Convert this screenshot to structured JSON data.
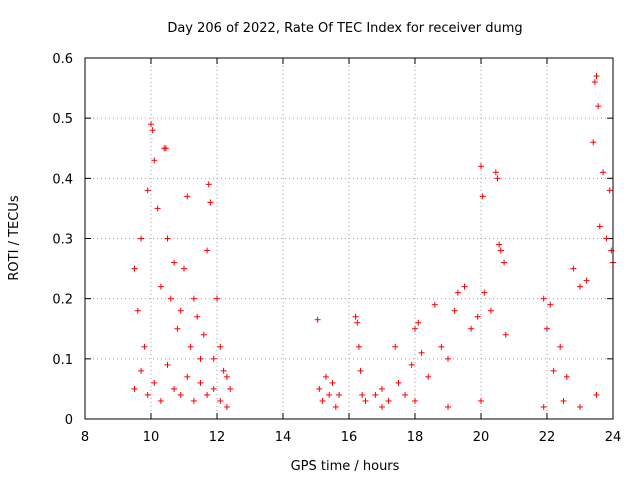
{
  "chart_data": {
    "type": "scatter",
    "title": "Day 206 of 2022, Rate Of TEC Index for receiver dumg",
    "xlabel": "GPS time / hours",
    "ylabel": "ROTI / TECUs",
    "xlim": [
      8,
      24
    ],
    "ylim": [
      0,
      0.6
    ],
    "x_ticks": [
      8,
      10,
      12,
      14,
      16,
      18,
      20,
      22,
      24
    ],
    "x_tick_labels": [
      "8",
      "10",
      "12",
      "14",
      "16",
      "18",
      "20",
      "22",
      "24"
    ],
    "y_ticks": [
      0,
      0.1,
      0.2,
      0.3,
      0.4,
      0.5,
      0.6
    ],
    "y_tick_labels": [
      "0",
      "0.1",
      "0.2",
      "0.3",
      "0.4",
      "0.5",
      "0.6"
    ],
    "grid": true,
    "marker": "+",
    "color": "#ff0000",
    "series": [
      {
        "name": "ROTI",
        "points": [
          [
            9.5,
            0.25
          ],
          [
            9.6,
            0.18
          ],
          [
            9.7,
            0.3
          ],
          [
            9.8,
            0.12
          ],
          [
            9.9,
            0.38
          ],
          [
            10.0,
            0.49
          ],
          [
            10.05,
            0.48
          ],
          [
            10.1,
            0.43
          ],
          [
            10.2,
            0.35
          ],
          [
            10.3,
            0.22
          ],
          [
            10.4,
            0.45
          ],
          [
            10.45,
            0.45
          ],
          [
            10.5,
            0.3
          ],
          [
            10.6,
            0.2
          ],
          [
            10.7,
            0.26
          ],
          [
            10.8,
            0.15
          ],
          [
            10.9,
            0.18
          ],
          [
            11.0,
            0.25
          ],
          [
            11.1,
            0.37
          ],
          [
            11.2,
            0.12
          ],
          [
            11.3,
            0.2
          ],
          [
            11.4,
            0.17
          ],
          [
            11.5,
            0.1
          ],
          [
            11.6,
            0.14
          ],
          [
            11.7,
            0.28
          ],
          [
            11.75,
            0.39
          ],
          [
            11.8,
            0.36
          ],
          [
            11.9,
            0.1
          ],
          [
            12.0,
            0.2
          ],
          [
            12.1,
            0.12
          ],
          [
            12.2,
            0.08
          ],
          [
            12.3,
            0.07
          ],
          [
            12.4,
            0.05
          ],
          [
            9.5,
            0.05
          ],
          [
            9.7,
            0.08
          ],
          [
            9.9,
            0.04
          ],
          [
            10.1,
            0.06
          ],
          [
            10.3,
            0.03
          ],
          [
            10.5,
            0.09
          ],
          [
            10.7,
            0.05
          ],
          [
            10.9,
            0.04
          ],
          [
            11.1,
            0.07
          ],
          [
            11.3,
            0.03
          ],
          [
            11.5,
            0.06
          ],
          [
            11.7,
            0.04
          ],
          [
            11.9,
            0.05
          ],
          [
            12.1,
            0.03
          ],
          [
            12.3,
            0.02
          ],
          [
            15.05,
            0.165
          ],
          [
            15.1,
            0.05
          ],
          [
            15.2,
            0.03
          ],
          [
            15.3,
            0.07
          ],
          [
            15.4,
            0.04
          ],
          [
            15.5,
            0.06
          ],
          [
            15.6,
            0.02
          ],
          [
            15.7,
            0.04
          ],
          [
            16.2,
            0.17
          ],
          [
            16.25,
            0.16
          ],
          [
            16.3,
            0.12
          ],
          [
            16.35,
            0.08
          ],
          [
            16.4,
            0.04
          ],
          [
            16.5,
            0.03
          ],
          [
            16.8,
            0.04
          ],
          [
            17.0,
            0.05
          ],
          [
            17.2,
            0.03
          ],
          [
            17.4,
            0.12
          ],
          [
            17.5,
            0.06
          ],
          [
            17.7,
            0.04
          ],
          [
            17.9,
            0.09
          ],
          [
            18.0,
            0.15
          ],
          [
            18.1,
            0.16
          ],
          [
            18.2,
            0.11
          ],
          [
            18.4,
            0.07
          ],
          [
            18.6,
            0.19
          ],
          [
            18.8,
            0.12
          ],
          [
            19.0,
            0.1
          ],
          [
            19.2,
            0.18
          ],
          [
            19.3,
            0.21
          ],
          [
            19.5,
            0.22
          ],
          [
            19.7,
            0.15
          ],
          [
            19.9,
            0.17
          ],
          [
            20.0,
            0.42
          ],
          [
            20.05,
            0.37
          ],
          [
            20.1,
            0.21
          ],
          [
            20.3,
            0.18
          ],
          [
            20.45,
            0.41
          ],
          [
            20.5,
            0.4
          ],
          [
            20.55,
            0.29
          ],
          [
            20.6,
            0.28
          ],
          [
            20.7,
            0.26
          ],
          [
            20.75,
            0.14
          ],
          [
            21.9,
            0.2
          ],
          [
            22.0,
            0.15
          ],
          [
            22.1,
            0.19
          ],
          [
            22.2,
            0.08
          ],
          [
            22.4,
            0.12
          ],
          [
            22.6,
            0.07
          ],
          [
            22.8,
            0.25
          ],
          [
            23.0,
            0.22
          ],
          [
            23.2,
            0.23
          ],
          [
            23.4,
            0.46
          ],
          [
            23.45,
            0.56
          ],
          [
            23.5,
            0.57
          ],
          [
            23.55,
            0.52
          ],
          [
            23.6,
            0.32
          ],
          [
            23.7,
            0.41
          ],
          [
            23.8,
            0.3
          ],
          [
            23.9,
            0.38
          ],
          [
            23.95,
            0.28
          ],
          [
            24.0,
            0.26
          ],
          [
            17.0,
            0.02
          ],
          [
            18.0,
            0.03
          ],
          [
            19.0,
            0.02
          ],
          [
            20.0,
            0.03
          ],
          [
            21.9,
            0.02
          ],
          [
            22.5,
            0.03
          ],
          [
            23.0,
            0.02
          ],
          [
            23.5,
            0.04
          ]
        ]
      }
    ]
  }
}
